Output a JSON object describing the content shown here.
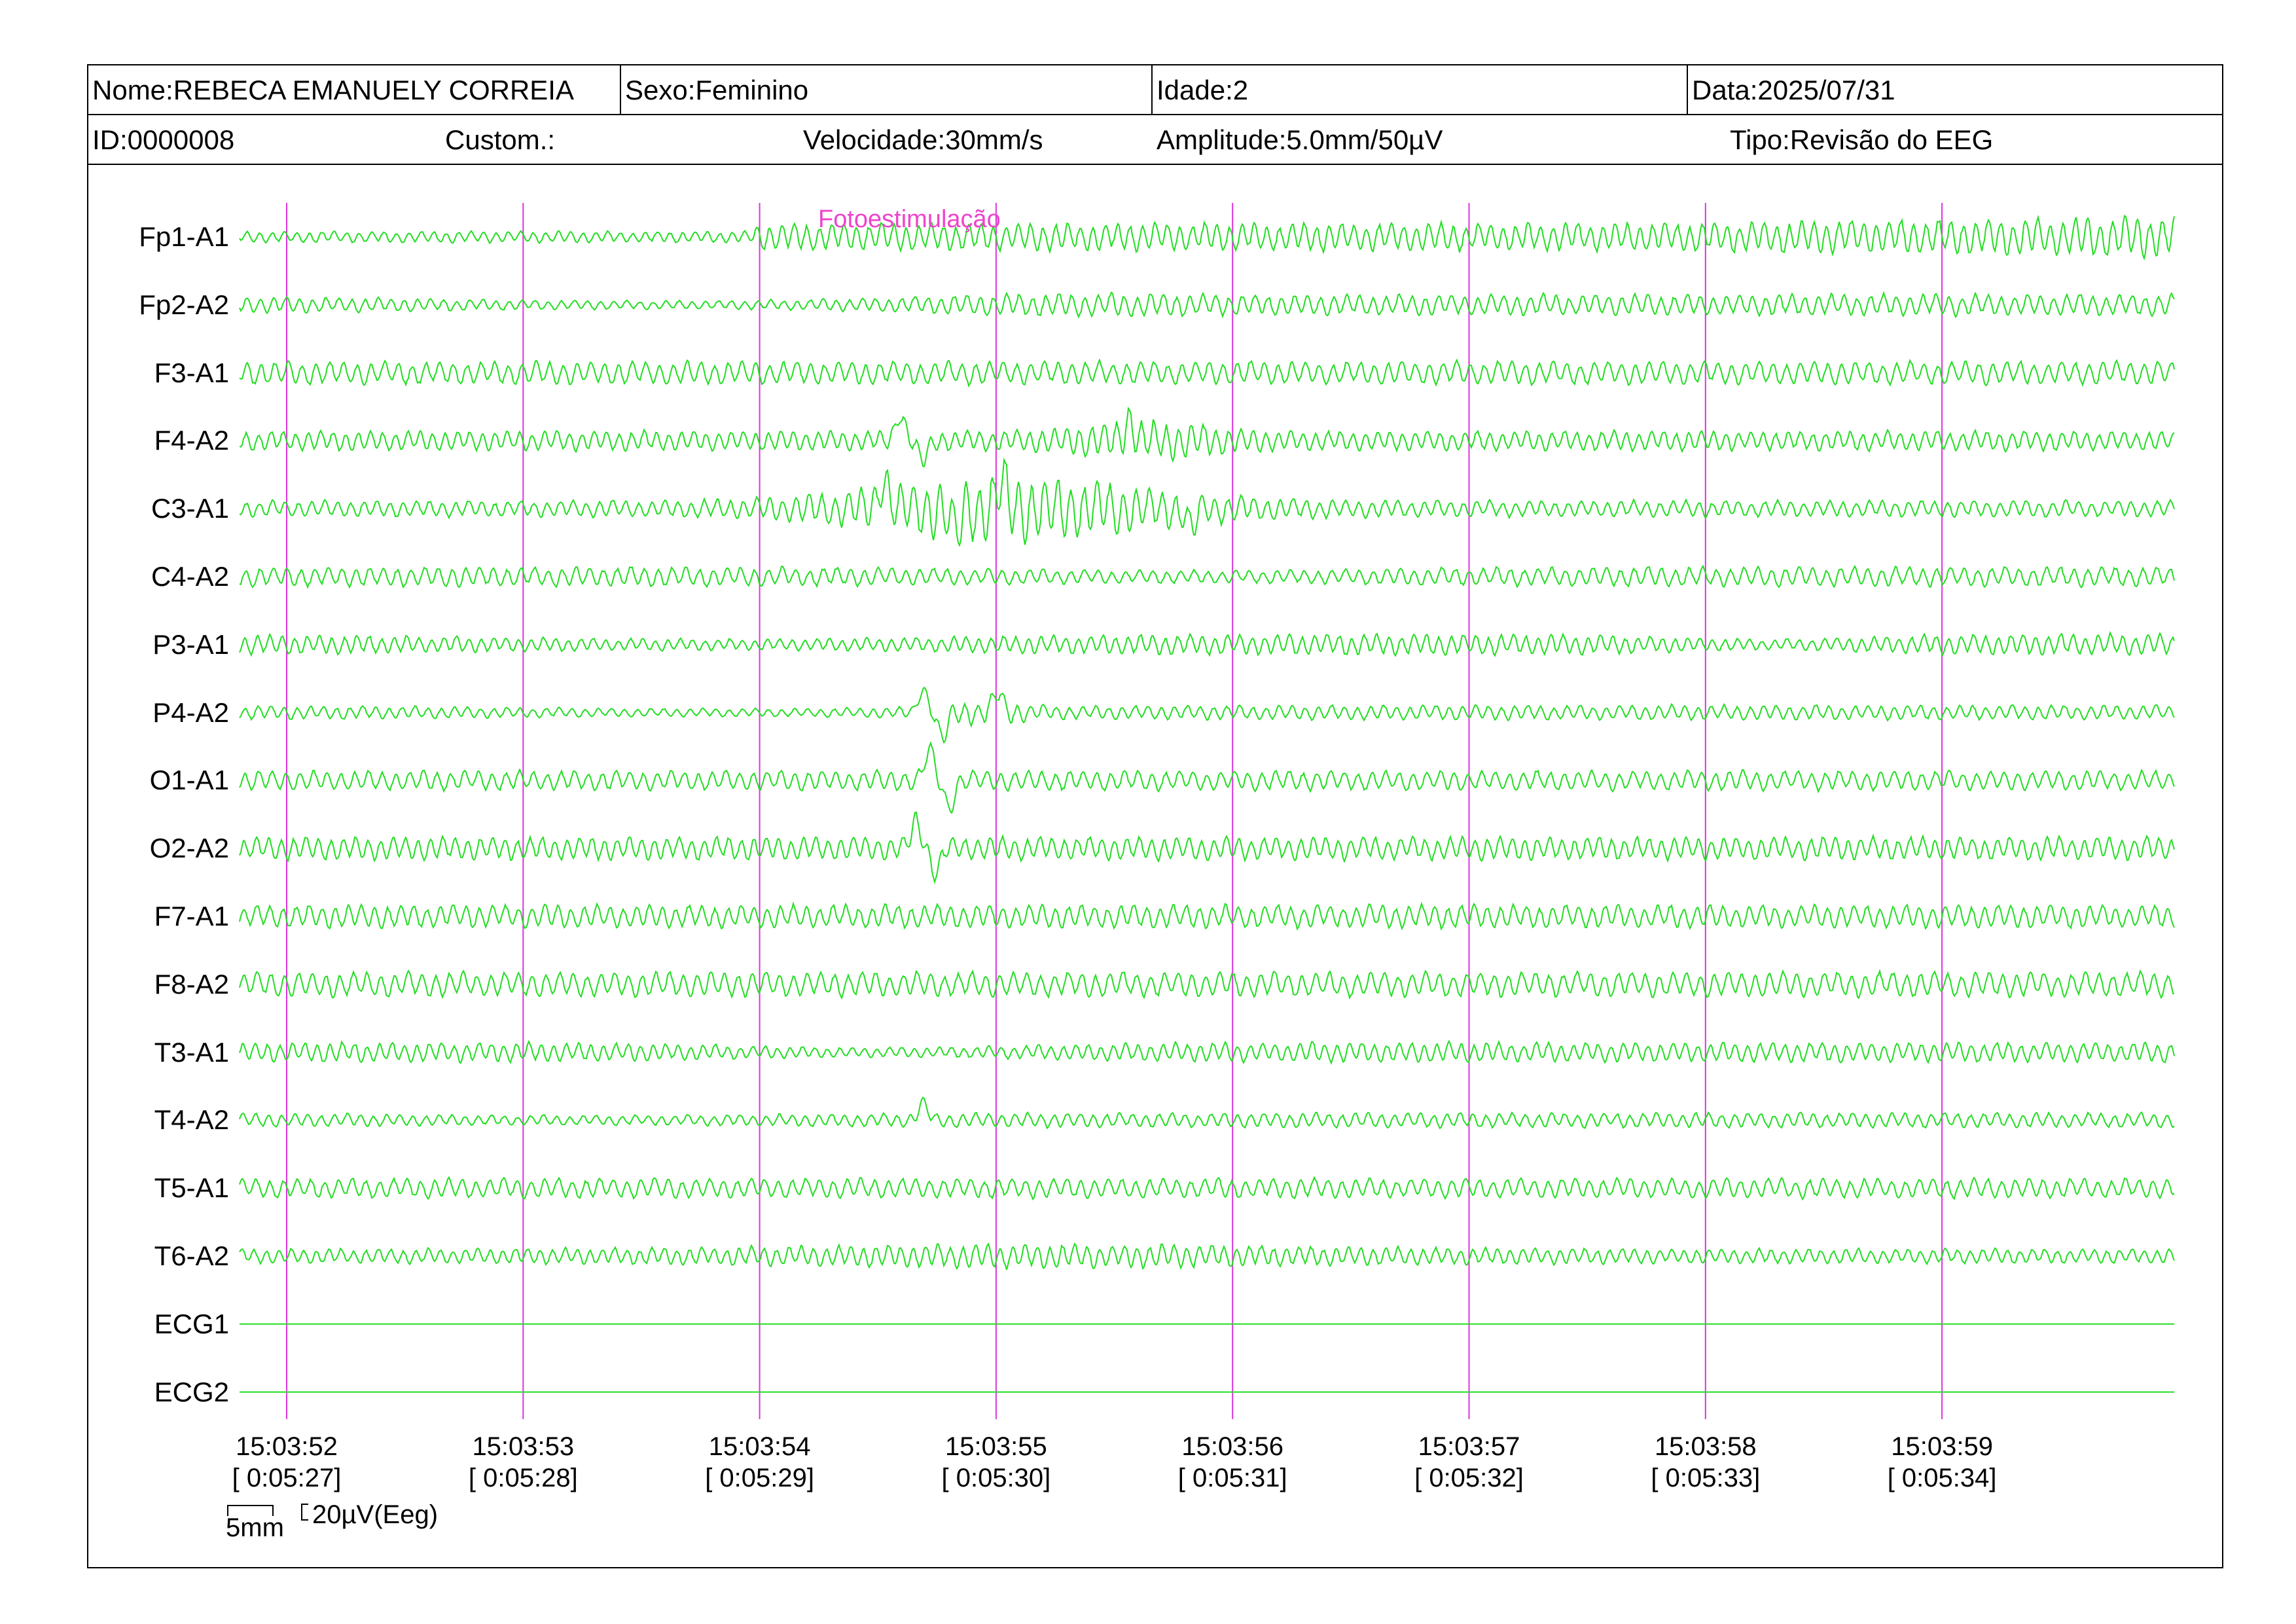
{
  "header": {
    "name": "Nome:REBECA EMANUELY CORREIA",
    "sex": "Sexo:Feminino",
    "age": "Idade:2",
    "date": "Data:2025/07/31",
    "id": "ID:0000008",
    "custom": "Custom.:",
    "speed": "Velocidade:30mm/s",
    "amplitude": "Amplitude:5.0mm/50µV",
    "type": "Tipo:Revisão do EEG"
  },
  "event_label": "Fotoestimulação",
  "scale": {
    "time_bar": "5mm",
    "amp_bar": "20µV(Eeg)"
  },
  "colors": {
    "trace": "#22dd22",
    "marker": "#dd33dd",
    "event_text": "#ee44cc"
  },
  "chart_data": {
    "type": "line",
    "title": "",
    "channels": [
      "Fp1-A1",
      "Fp2-A2",
      "F3-A1",
      "F4-A2",
      "C3-A1",
      "C4-A2",
      "P3-A1",
      "P4-A2",
      "O1-A1",
      "O2-A2",
      "F7-A1",
      "F8-A2",
      "T3-A1",
      "T4-A2",
      "T5-A1",
      "T6-A2",
      "ECG1",
      "ECG2"
    ],
    "time_markers": [
      {
        "clock": "15:03:52",
        "elapsed": "[ 0:05:27]"
      },
      {
        "clock": "15:03:53",
        "elapsed": "[ 0:05:28]"
      },
      {
        "clock": "15:03:54",
        "elapsed": "[ 0:05:29]"
      },
      {
        "clock": "15:03:55",
        "elapsed": "[ 0:05:30]"
      },
      {
        "clock": "15:03:56",
        "elapsed": "[ 0:05:31]"
      },
      {
        "clock": "15:03:57",
        "elapsed": "[ 0:05:32]"
      },
      {
        "clock": "15:03:58",
        "elapsed": "[ 0:05:33]"
      },
      {
        "clock": "15:03:59",
        "elapsed": "[ 0:05:34]"
      }
    ],
    "event": {
      "label": "Fotoestimulação",
      "start_time": "15:03:54.3"
    },
    "grid": false,
    "legend": "none"
  }
}
